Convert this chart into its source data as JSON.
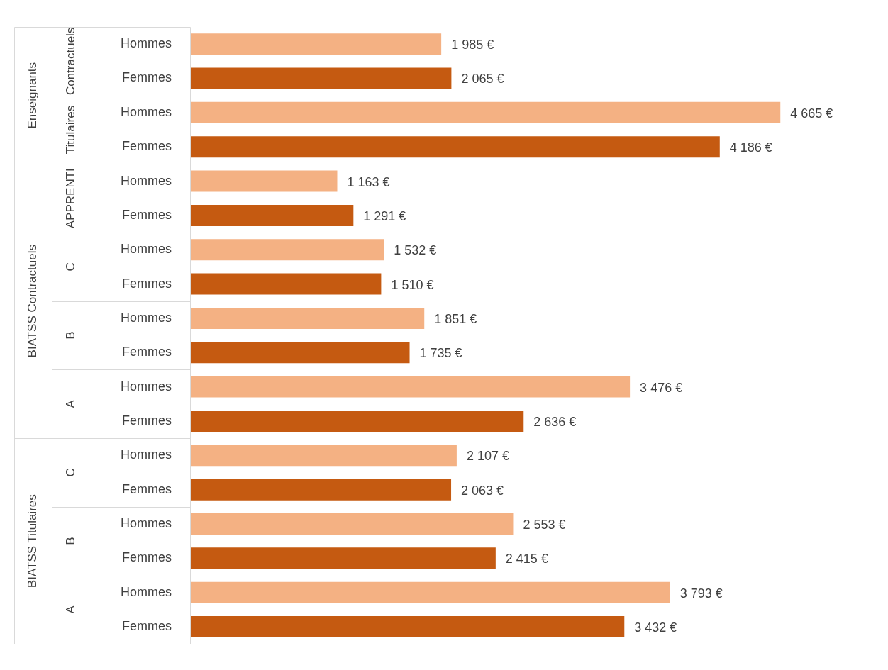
{
  "chart_data": {
    "type": "bar",
    "orientation": "horizontal",
    "categories": [
      "Hommes",
      "Femmes",
      "Hommes",
      "Femmes",
      "Hommes",
      "Femmes",
      "Hommes",
      "Femmes",
      "Hommes",
      "Femmes",
      "Hommes",
      "Femmes",
      "Hommes",
      "Femmes",
      "Hommes",
      "Femmes",
      "Hommes",
      "Femmes"
    ],
    "values": [
      1985,
      2065,
      4665,
      4186,
      1163,
      1291,
      1532,
      1510,
      1851,
      1735,
      3476,
      2636,
      2107,
      2063,
      2553,
      2415,
      3793,
      3432
    ],
    "colors": [
      "#f4b183",
      "#c55a11",
      "#f4b183",
      "#c55a11",
      "#f4b183",
      "#c55a11",
      "#f4b183",
      "#c55a11",
      "#f4b183",
      "#c55a11",
      "#f4b183",
      "#c55a11",
      "#f4b183",
      "#c55a11",
      "#f4b183",
      "#c55a11",
      "#f4b183",
      "#c55a11"
    ],
    "value_labels": [
      "1 985 €",
      "2 065 €",
      "4 665 €",
      "4 186 €",
      "1 163 €",
      "1 291 €",
      "1 532 €",
      "1 510 €",
      "1 851 €",
      "1 735 €",
      "3 476 €",
      "2 636 €",
      "2 107 €",
      "2 063 €",
      "2 553 €",
      "2 415 €",
      "3 793 €",
      "3 432 €"
    ],
    "annotations": [
      "Contractuels",
      "Titulaires",
      "APPRENTI",
      "C",
      "B",
      "A",
      "C",
      "B",
      "A",
      "Enseignants",
      "BIATSS Contractuels",
      "BIATSS Titulaires"
    ],
    "tick_labels": "y",
    "grid": false,
    "legend": false
  }
}
